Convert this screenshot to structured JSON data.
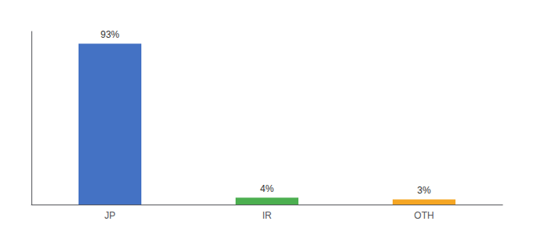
{
  "chart_data": {
    "type": "bar",
    "categories": [
      "JP",
      "IR",
      "OTH"
    ],
    "values": [
      93,
      4,
      3
    ],
    "value_labels": [
      "93%",
      "4%",
      "3%"
    ],
    "colors": [
      "#4472c4",
      "#4caf50",
      "#f5a623"
    ],
    "ylim": [
      0,
      100
    ],
    "grid": false,
    "data_labels": true,
    "tick_labels": "x"
  }
}
